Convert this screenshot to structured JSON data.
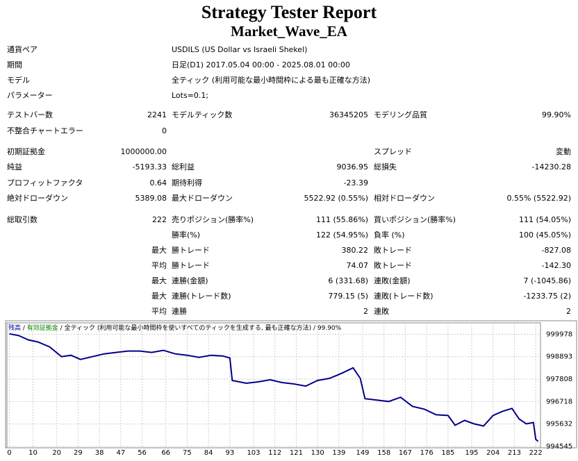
{
  "header": {
    "title": "Strategy Tester Report",
    "subtitle": "Market_Wave_EA"
  },
  "info": [
    [
      "通貨ペア",
      "USDILS (US Dollar vs Israeli Shekel)"
    ],
    [
      "期間",
      "日足(D1) 2017.05.04 00:00 - 2025.08.01 00:00"
    ],
    [
      "モデル",
      "全ティック (利用可能な最小時間枠による最も正確な方法)"
    ],
    [
      "パラメーター",
      "Lots=0.1;"
    ]
  ],
  "stats": [
    [
      "テストバー数",
      "2241",
      "モデルティック数",
      "36345205",
      "モデリング品質",
      "99.90%"
    ],
    [
      "不整合チャートエラー",
      "0",
      null,
      null,
      null,
      null
    ],
    [
      "初期証拠金",
      "1000000.00",
      null,
      null,
      "スプレッド",
      "変動"
    ],
    [
      "純益",
      "-5193.33",
      "総利益",
      "9036.95",
      "総損失",
      "-14230.28"
    ],
    [
      "プロフィットファクタ",
      "0.64",
      "期待利得",
      "-23.39",
      null,
      null
    ],
    [
      "絶対ドローダウン",
      "5389.08",
      "最大ドローダウン",
      "5522.92 (0.55%)",
      "相対ドローダウン",
      "0.55% (5522.92)"
    ],
    [
      "総取引数",
      "222",
      "売りポジション(勝率%)",
      "111 (55.86%)",
      "買いポジション(勝率%)",
      "111 (54.05%)"
    ],
    [
      null,
      null,
      "勝率(%)",
      "122 (54.95%)",
      "負率 (%)",
      "100 (45.05%)"
    ],
    [
      null,
      "最大",
      "勝トレード",
      "380.22",
      "敗トレード",
      "-827.08"
    ],
    [
      null,
      "平均",
      "勝トレード",
      "74.07",
      "敗トレード",
      "-142.30"
    ],
    [
      null,
      "最大",
      "連勝(金額)",
      "6 (331.68)",
      "連敗(金額)",
      "7 (-1045.86)"
    ],
    [
      null,
      "最大",
      "連勝(トレード数)",
      "779.15 (5)",
      "連敗(トレード数)",
      "-1233.75 (2)"
    ],
    [
      null,
      "平均",
      "連勝",
      "2",
      "連敗",
      "2"
    ]
  ],
  "chart_data": {
    "type": "line",
    "legend": [
      {
        "text": "残高",
        "color": "#0000a0"
      },
      {
        "text": "有効証拠金",
        "color": "#008000"
      },
      {
        "text": "全ティック (利用可能な最小時間枠を使いすべてのティックを生成する, 最も正確な方法)",
        "color": "#000000"
      },
      {
        "text": "99.90%",
        "color": "#000000"
      }
    ],
    "separator": " / ",
    "series": [
      {
        "name": "残高",
        "color": "#00008b",
        "x": [
          0,
          4,
          8,
          12,
          17,
          22,
          26,
          30,
          35,
          40,
          45,
          50,
          55,
          60,
          65,
          70,
          75,
          80,
          85,
          90,
          93,
          94,
          100,
          105,
          110,
          115,
          120,
          125,
          130,
          135,
          140,
          145,
          148,
          150,
          155,
          160,
          165,
          170,
          175,
          180,
          185,
          188,
          192,
          196,
          200,
          204,
          208,
          212,
          215,
          218,
          221,
          222,
          223
        ],
        "values": [
          1000000,
          999910,
          999707,
          999605,
          999368,
          998893,
          998961,
          998758,
          998893,
          999029,
          999097,
          999164,
          999164,
          999097,
          999198,
          999029,
          998961,
          998859,
          998961,
          998927,
          998825,
          997740,
          997605,
          997673,
          997774,
          997639,
          997571,
          997469,
          997740,
          997842,
          998079,
          998351,
          997842,
          996859,
          996791,
          996723,
          996927,
          996486,
          996351,
          996079,
          996045,
          995571,
          995808,
          995639,
          995537,
          996045,
          996249,
          996385,
          995876,
          995639,
          995707,
          994893,
          994791
        ]
      }
    ],
    "xlim": [
      -1,
      224
    ],
    "ylim": [
      994480,
      1000530
    ],
    "xticks": [
      0,
      10,
      20,
      29,
      38,
      47,
      56,
      66,
      75,
      84,
      93,
      103,
      112,
      121,
      130,
      139,
      149,
      158,
      167,
      176,
      185,
      195,
      204,
      213,
      222
    ],
    "yticks": [
      999978,
      998893,
      997808,
      996718,
      995632,
      994545
    ],
    "grid": true
  }
}
